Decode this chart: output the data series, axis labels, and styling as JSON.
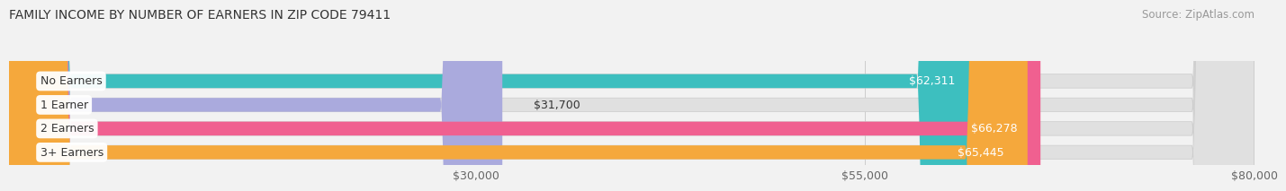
{
  "title": "FAMILY INCOME BY NUMBER OF EARNERS IN ZIP CODE 79411",
  "source": "Source: ZipAtlas.com",
  "categories": [
    "No Earners",
    "1 Earner",
    "2 Earners",
    "3+ Earners"
  ],
  "values": [
    62311,
    31700,
    66278,
    65445
  ],
  "bar_colors": [
    "#3dbfbf",
    "#aaaadd",
    "#f06090",
    "#f5a83c"
  ],
  "label_colors": [
    "white",
    "black",
    "white",
    "white"
  ],
  "xlim": [
    0,
    80000
  ],
  "xticks": [
    30000,
    55000,
    80000
  ],
  "xtick_labels": [
    "$30,000",
    "$55,000",
    "$80,000"
  ],
  "value_labels": [
    "$62,311",
    "$31,700",
    "$66,278",
    "$65,445"
  ],
  "bg_color": "#f2f2f2",
  "bar_bg_color": "#e0e0e0",
  "title_fontsize": 10,
  "source_fontsize": 8.5,
  "tick_fontsize": 9,
  "label_fontsize": 9,
  "value_fontsize": 9,
  "fig_width": 14.06,
  "fig_height": 2.33
}
